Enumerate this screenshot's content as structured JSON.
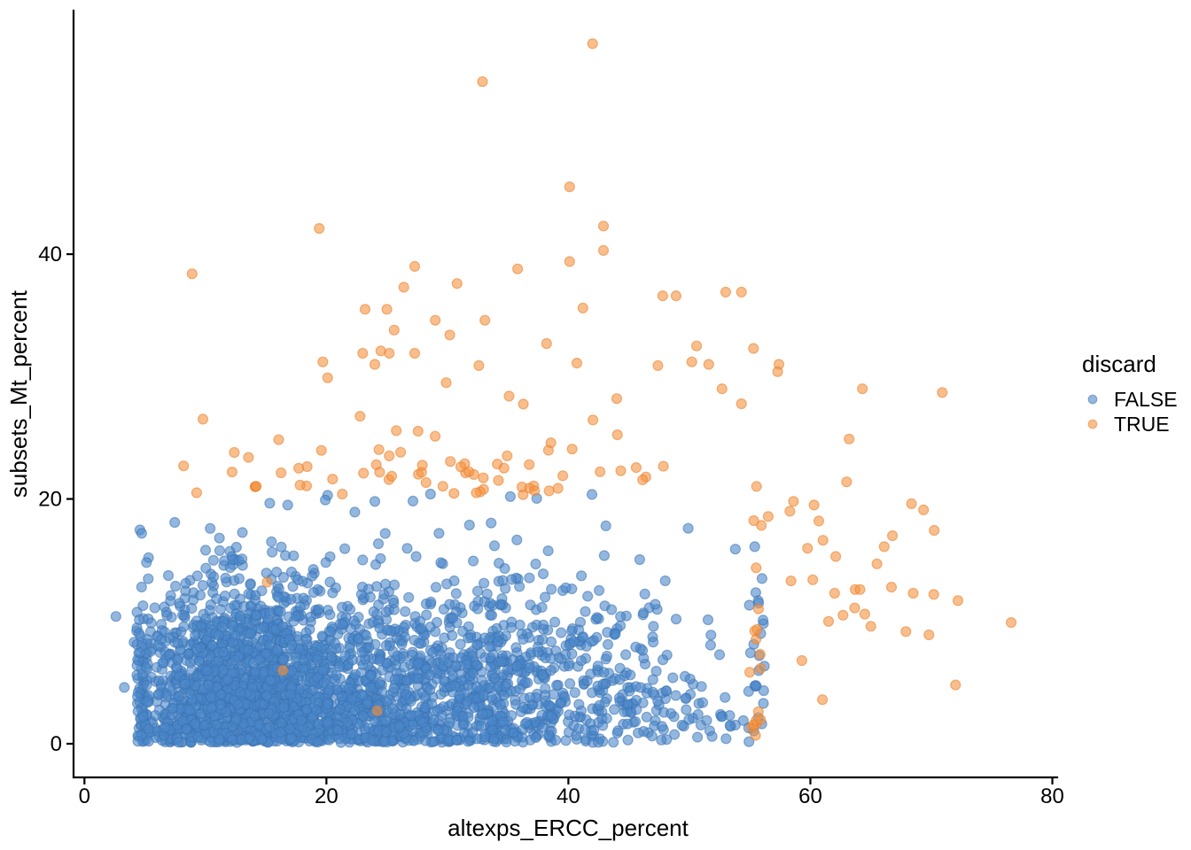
{
  "figure": {
    "background": "#ffffff",
    "axis_color": "#000000",
    "text_color": "#000000"
  },
  "chart_data": {
    "type": "scatter",
    "title": "",
    "xlabel": "altexps_ERCC_percent",
    "ylabel": "subsets_Mt_percent",
    "x_axis": {
      "label": "altexps_ERCC_percent",
      "lim": [
        -0.9,
        80.4
      ],
      "ticks": [
        {
          "v": 0,
          "label": "0"
        },
        {
          "v": 20,
          "label": "20"
        },
        {
          "v": 40,
          "label": "40"
        },
        {
          "v": 60,
          "label": "60"
        },
        {
          "v": 80,
          "label": "80"
        }
      ]
    },
    "y_axis": {
      "label": "subsets_Mt_percent",
      "lim": [
        -2.75,
        59.9
      ],
      "ticks": [
        {
          "v": 0,
          "label": "0"
        },
        {
          "v": 20,
          "label": "20"
        },
        {
          "v": 40,
          "label": "40"
        }
      ]
    },
    "grid": false,
    "legend": {
      "title": "discard",
      "position": "right",
      "items": [
        {
          "label": "FALSE",
          "series": 0
        },
        {
          "label": "TRUE",
          "series": 1
        }
      ]
    },
    "style": {
      "point_radius": 5.5,
      "point_opacity": 0.6,
      "stroke_opacity": 0.55
    },
    "seed": 42,
    "series": [
      {
        "name": "FALSE",
        "color": "#4b87ca",
        "stroke": "#3a72b0",
        "approx_count": 3000,
        "points": [
          [
            2.6,
            10.4
          ],
          [
            3.3,
            4.6
          ],
          [
            5.3,
            15.2
          ],
          [
            4.1,
            8.3
          ],
          [
            16.8,
            19.5
          ],
          [
            20.1,
            20.3
          ],
          [
            24,
            19.8
          ],
          [
            28.6,
            20.4
          ],
          [
            35.2,
            20.2
          ],
          [
            43.1,
            17.8
          ],
          [
            49.9,
            17.6
          ],
          [
            53.8,
            15.9
          ],
          [
            55.4,
            16.1
          ],
          [
            55.9,
            9
          ],
          [
            56,
            13.5
          ],
          [
            54.9,
            1.3
          ],
          [
            50.3,
            2.1
          ],
          [
            46.6,
            0.9
          ]
        ],
        "clusters": [
          {
            "shape": "cloud",
            "n": 3000,
            "x_mixture": [
              [
                0.5,
                13,
                4.8
              ],
              [
                0.34,
                25,
                8
              ],
              [
                0.16,
                38,
                9
              ]
            ],
            "x_clip": [
              4.3,
              56.2
            ],
            "y_halfnormal_sd": 6.3,
            "y_clip": [
              0.1,
              20.5
            ]
          }
        ]
      },
      {
        "name": "TRUE",
        "color": "#f5923f",
        "stroke": "#e8802b",
        "approx_count": 175,
        "points": [
          [
            42,
            57.2
          ],
          [
            32.9,
            54.1
          ],
          [
            40.1,
            45.5
          ],
          [
            42.9,
            42.3
          ],
          [
            19.4,
            42.1
          ],
          [
            42.9,
            40.3
          ],
          [
            40.1,
            39.4
          ],
          [
            27.3,
            39
          ],
          [
            35.8,
            38.8
          ],
          [
            8.9,
            38.4
          ],
          [
            30.8,
            37.6
          ],
          [
            26.4,
            37.3
          ],
          [
            53,
            36.9
          ],
          [
            54.3,
            36.9
          ],
          [
            47.8,
            36.6
          ],
          [
            48.9,
            36.6
          ],
          [
            41.2,
            35.6
          ],
          [
            23.2,
            35.5
          ],
          [
            25,
            35.5
          ],
          [
            29,
            34.6
          ],
          [
            33.1,
            34.6
          ],
          [
            25.6,
            33.8
          ],
          [
            30.2,
            33.4
          ],
          [
            38.2,
            32.7
          ],
          [
            50.6,
            32.5
          ],
          [
            55.3,
            32.3
          ],
          [
            24.5,
            32.1
          ],
          [
            23,
            31.9
          ],
          [
            25.2,
            31.9
          ],
          [
            27.3,
            31.9
          ],
          [
            40.7,
            31.1
          ],
          [
            50.2,
            31.2
          ],
          [
            51.6,
            31
          ],
          [
            19.7,
            31.2
          ],
          [
            24,
            31
          ],
          [
            32.6,
            30.9
          ],
          [
            47.4,
            30.9
          ],
          [
            57.4,
            31
          ],
          [
            57.3,
            30.4
          ],
          [
            20.1,
            29.9
          ],
          [
            29.9,
            29.5
          ],
          [
            52.7,
            29
          ],
          [
            64.3,
            29
          ],
          [
            70.9,
            28.7
          ],
          [
            35.1,
            28.4
          ],
          [
            44,
            28.2
          ],
          [
            63.2,
            24.9
          ],
          [
            63,
            21.4
          ],
          [
            58.6,
            19.8
          ],
          [
            60.3,
            19.5
          ],
          [
            58.3,
            19
          ],
          [
            60.7,
            18.2
          ],
          [
            66.1,
            16.1
          ],
          [
            62.1,
            15.3
          ],
          [
            65.5,
            14.7
          ],
          [
            58.4,
            13.3
          ],
          [
            60.2,
            13.4
          ],
          [
            62,
            12.3
          ],
          [
            63.7,
            12.6
          ],
          [
            64.1,
            12.6
          ],
          [
            66.7,
            12.8
          ],
          [
            68.5,
            12.3
          ],
          [
            70.2,
            12.2
          ],
          [
            72.2,
            11.7
          ],
          [
            61.5,
            10
          ],
          [
            62.7,
            10.5
          ],
          [
            64.5,
            10.6
          ],
          [
            65,
            9.6
          ],
          [
            76.6,
            9.9
          ],
          [
            69.8,
            8.9
          ],
          [
            59.3,
            6.8
          ],
          [
            61,
            3.6
          ],
          [
            72,
            4.8
          ],
          [
            16.4,
            6
          ],
          [
            15.1,
            13.2
          ],
          [
            24.2,
            2.7
          ],
          [
            8.2,
            22.7
          ],
          [
            12.2,
            22.2
          ],
          [
            14.1,
            21
          ]
        ],
        "clusters": [
          {
            "shape": "band",
            "n": 70,
            "x_normal": [
              32,
              12
            ],
            "x_clip": [
              8.5,
              56
            ],
            "y_base": 20.3,
            "y_halfnormal_sd": 3.0
          },
          {
            "shape": "strip",
            "n": 18,
            "x_range": [
              54.7,
              56.6
            ],
            "y_base": 0.4,
            "y_span": 21.6,
            "y_pow": 1.5
          },
          {
            "shape": "tail",
            "n": 8,
            "x_base": 57,
            "x_span": 16,
            "x_pow": 1.5,
            "y_range": [
              8,
              20
            ]
          }
        ]
      }
    ]
  }
}
